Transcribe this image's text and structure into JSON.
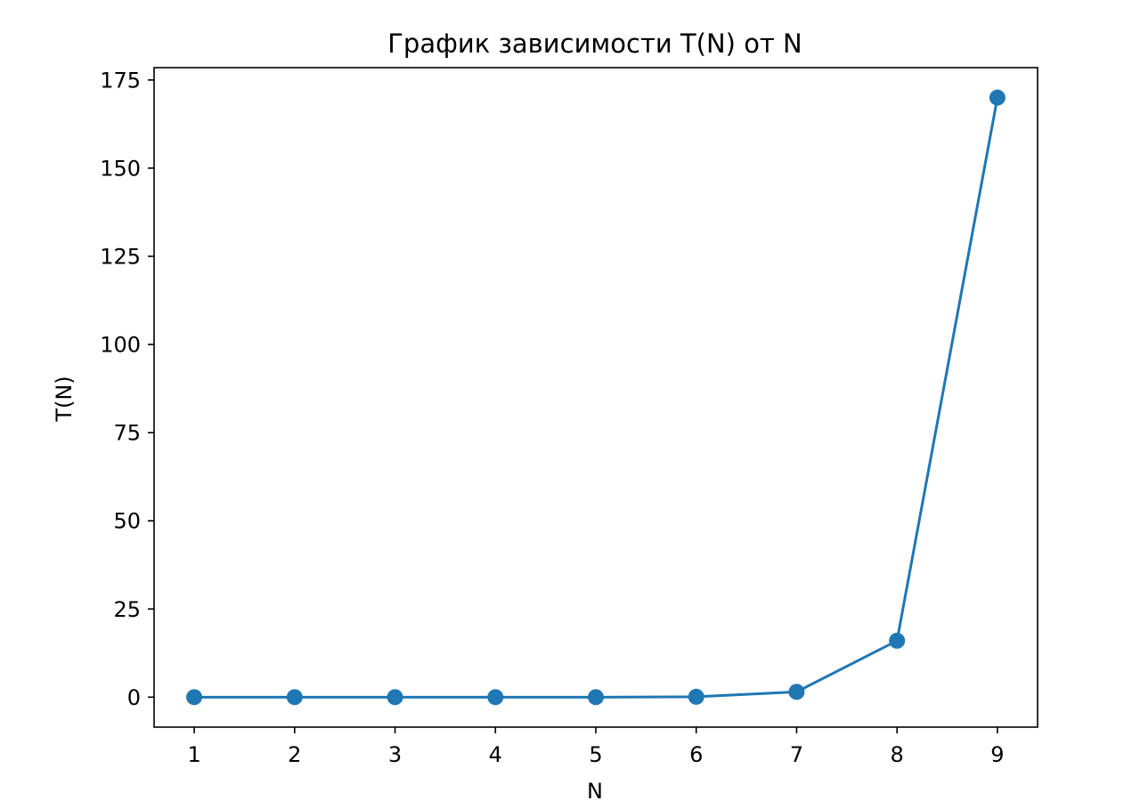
{
  "chart_data": {
    "type": "line",
    "title": "График зависимости T(N) от N",
    "xlabel": "N",
    "ylabel": "T(N)",
    "x": [
      1,
      2,
      3,
      4,
      5,
      6,
      7,
      8,
      9
    ],
    "series": [
      {
        "values": [
          0,
          0,
          0,
          0,
          0,
          0.1,
          1.5,
          16,
          170
        ],
        "color": "#1f77b4",
        "marker": "circle"
      }
    ],
    "xlim": [
      0.6,
      9.4
    ],
    "ylim": [
      -8.5,
      178.5
    ],
    "xticks": [
      1,
      2,
      3,
      4,
      5,
      6,
      7,
      8,
      9
    ],
    "yticks": [
      0,
      25,
      50,
      75,
      100,
      125,
      150,
      175
    ],
    "grid": false,
    "legend": "none"
  }
}
